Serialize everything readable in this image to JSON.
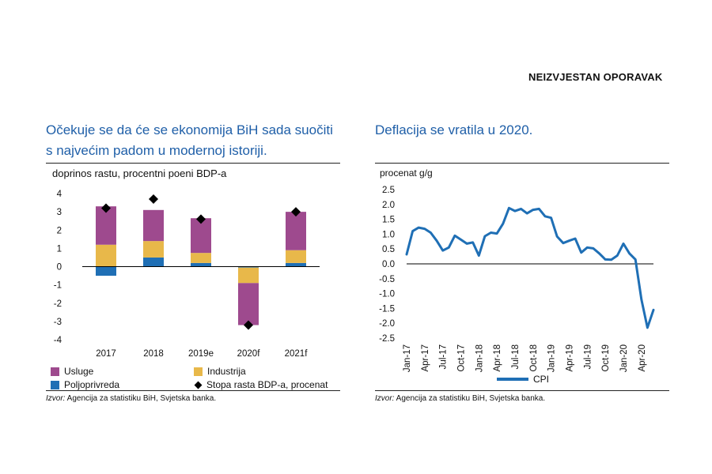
{
  "header": {
    "label": "NEIZVJESTAN OPORAVAK"
  },
  "colors": {
    "services": "#9e4a8e",
    "industry": "#e8b84a",
    "agriculture": "#1f6fb5",
    "cpi_line": "#1f6fb5",
    "title": "#1f5fa8"
  },
  "left_panel": {
    "title": "Očekuje se da će se ekonomija BiH sada suočiti s najvećim padom u modernoj istoriji.",
    "ylabel": "doprinos rastu, procentni poeni BDP-a",
    "source_prefix": "Izvor:",
    "source_text": " Agencija za statistiku BiH, Svjetska banka."
  },
  "right_panel": {
    "title": "Deflacija se vratila u 2020.",
    "ylabel": "procenat g/g",
    "source_prefix": "Izvor:",
    "source_text": " Agencija za statistiku BiH, Svjetska banka."
  },
  "chart_data": [
    {
      "type": "bar",
      "stacked": true,
      "categories": [
        "2017",
        "2018",
        "2019e",
        "2020f",
        "2021f"
      ],
      "ylim": [
        -4,
        4
      ],
      "yticks": [
        "4",
        "3",
        "2",
        "1",
        "0",
        "-1",
        "-2",
        "-3",
        "-4"
      ],
      "ylabel": "doprinos rastu, procentni poeni BDP-a",
      "series": [
        {
          "name": "Poljoprivreda",
          "values": [
            -0.5,
            0.5,
            0.2,
            -0.05,
            0.2
          ]
        },
        {
          "name": "Industrija",
          "values": [
            1.2,
            0.9,
            0.55,
            -0.85,
            0.7
          ]
        },
        {
          "name": "Usluge",
          "values": [
            2.1,
            1.7,
            1.9,
            -2.3,
            2.1
          ]
        }
      ],
      "markers": {
        "name": "Stopa rasta BDP-a, procenat",
        "values": [
          3.2,
          3.7,
          2.6,
          -3.2,
          3.0
        ]
      },
      "legend": [
        "Usluge",
        "Industrija",
        "Poljoprivreda",
        "Stopa rasta BDP-a, procenat"
      ],
      "legend_position": "bottom"
    },
    {
      "type": "line",
      "ylim": [
        -2.5,
        2.5
      ],
      "yticks": [
        "2.5",
        "2.0",
        "1.5",
        "1.0",
        "0.5",
        "0.0",
        "-0.5",
        "-1.0",
        "-1.5",
        "-2.0",
        "-2.5"
      ],
      "ylabel": "procenat g/g",
      "xticks": [
        "Jan-17",
        "Apr-17",
        "Jul-17",
        "Oct-17",
        "Jan-18",
        "Apr-18",
        "Jul-18",
        "Oct-18",
        "Jan-19",
        "Apr-19",
        "Jul-19",
        "Oct-19",
        "Jan-20",
        "Apr-20"
      ],
      "x": [
        "Jan-17",
        "Feb-17",
        "Mar-17",
        "Apr-17",
        "May-17",
        "Jun-17",
        "Jul-17",
        "Aug-17",
        "Sep-17",
        "Oct-17",
        "Nov-17",
        "Dec-17",
        "Jan-18",
        "Feb-18",
        "Mar-18",
        "Apr-18",
        "May-18",
        "Jun-18",
        "Jul-18",
        "Aug-18",
        "Sep-18",
        "Oct-18",
        "Nov-18",
        "Dec-18",
        "Jan-19",
        "Feb-19",
        "Mar-19",
        "Apr-19",
        "May-19",
        "Jun-19",
        "Jul-19",
        "Aug-19",
        "Sep-19",
        "Oct-19",
        "Nov-19",
        "Dec-19",
        "Jan-20",
        "Feb-20",
        "Mar-20",
        "Apr-20",
        "May-20",
        "Jun-20"
      ],
      "series": [
        {
          "name": "CPI",
          "values": [
            0.32,
            1.1,
            1.22,
            1.18,
            1.05,
            0.78,
            0.45,
            0.55,
            0.95,
            0.82,
            0.68,
            0.72,
            0.28,
            0.93,
            1.05,
            1.02,
            1.35,
            1.88,
            1.78,
            1.85,
            1.7,
            1.82,
            1.85,
            1.6,
            1.55,
            0.92,
            0.7,
            0.78,
            0.85,
            0.38,
            0.55,
            0.52,
            0.35,
            0.15,
            0.14,
            0.28,
            0.68,
            0.35,
            0.15,
            -1.2,
            -2.15,
            -1.55
          ]
        }
      ],
      "legend": [
        "CPI"
      ],
      "legend_position": "bottom"
    }
  ]
}
